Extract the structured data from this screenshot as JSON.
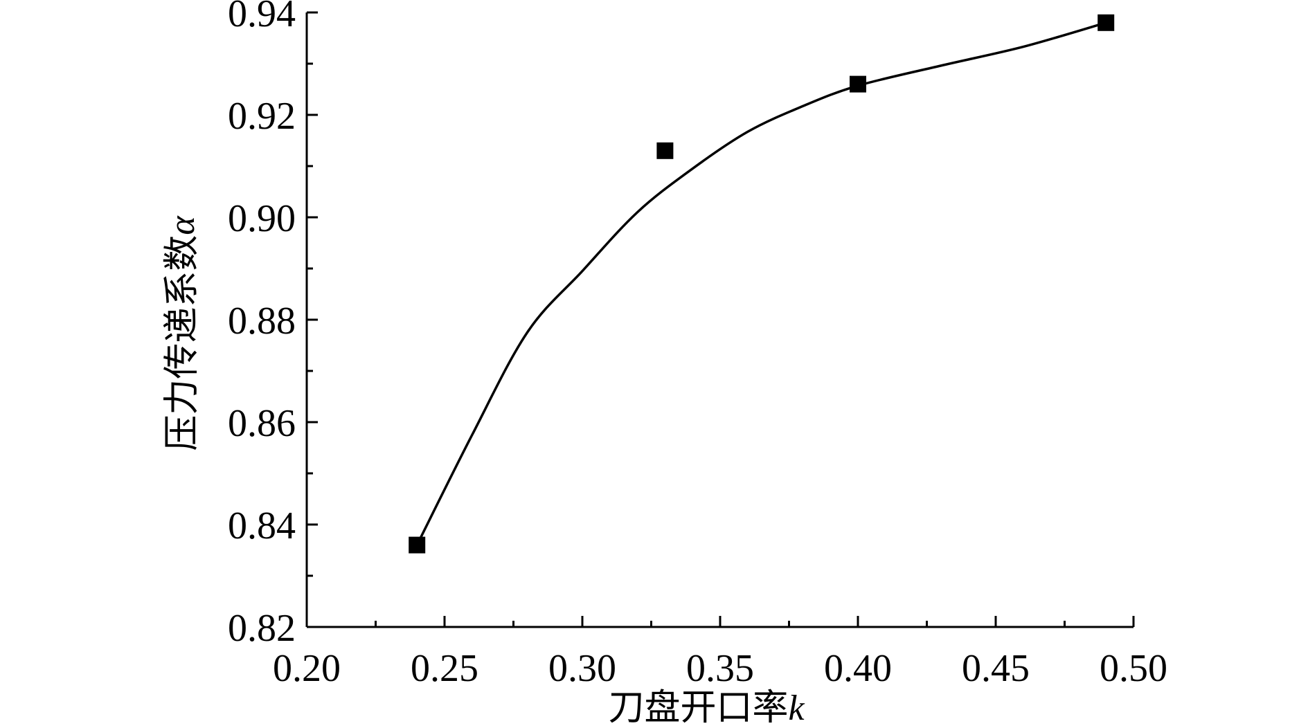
{
  "chart_data": {
    "type": "scatter",
    "xlabel": "刀盘开口率",
    "xlabel_var": "k",
    "ylabel": "压力传递系数",
    "ylabel_var": "α",
    "xlim": [
      0.2,
      0.5
    ],
    "ylim": [
      0.82,
      0.94
    ],
    "x_major_ticks": [
      0.2,
      0.25,
      0.3,
      0.35,
      0.4,
      0.45,
      0.5
    ],
    "y_major_ticks": [
      0.82,
      0.84,
      0.86,
      0.88,
      0.9,
      0.92,
      0.94
    ],
    "x_tick_labels": [
      "0.20",
      "0.25",
      "0.30",
      "0.35",
      "0.40",
      "0.45",
      "0.50"
    ],
    "y_tick_labels": [
      "0.82",
      "0.84",
      "0.86",
      "0.88",
      "0.90",
      "0.92",
      "0.94"
    ],
    "grid": false,
    "marker": "square",
    "series": [
      {
        "x": [
          0.24,
          0.33,
          0.4,
          0.49
        ],
        "y": [
          0.836,
          0.913,
          0.926,
          0.938
        ]
      }
    ],
    "fit_curve": {
      "x": [
        0.24,
        0.26,
        0.28,
        0.3,
        0.32,
        0.34,
        0.36,
        0.38,
        0.4,
        0.43,
        0.46,
        0.49
      ],
      "y": [
        0.836,
        0.8575,
        0.8775,
        0.8895,
        0.901,
        0.9095,
        0.9167,
        0.9217,
        0.9257,
        0.9296,
        0.9333,
        0.938
      ]
    }
  }
}
